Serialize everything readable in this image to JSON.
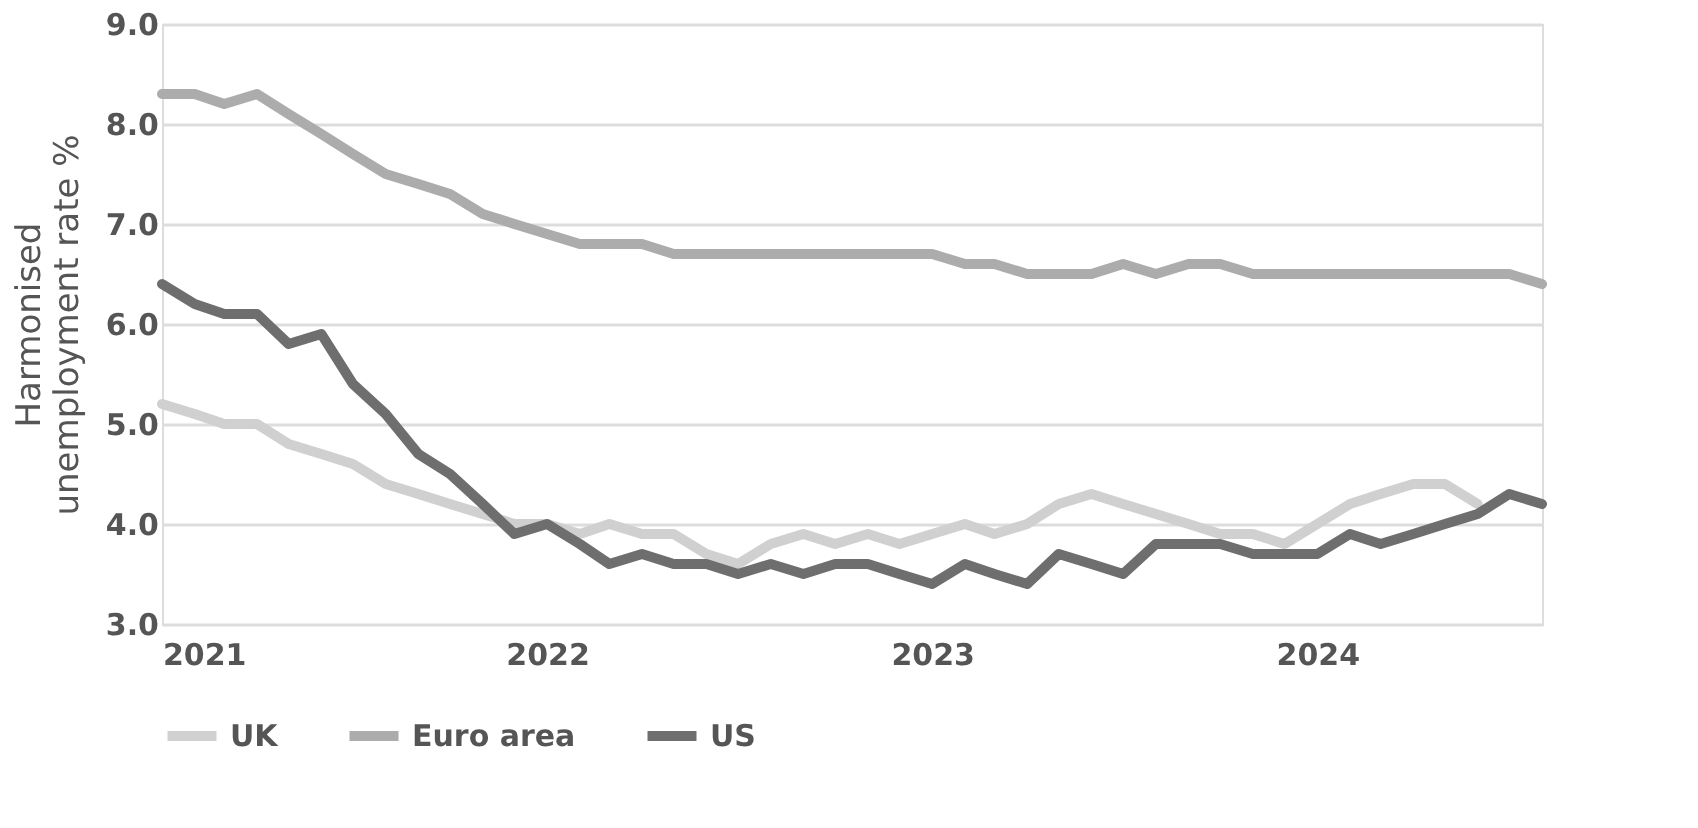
{
  "chart_data": {
    "type": "line",
    "ylabel": "Harmonised unemployment rate %",
    "x": [
      "2021-01",
      "2021-02",
      "2021-03",
      "2021-04",
      "2021-05",
      "2021-06",
      "2021-07",
      "2021-08",
      "2021-09",
      "2021-10",
      "2021-11",
      "2021-12",
      "2022-01",
      "2022-02",
      "2022-03",
      "2022-04",
      "2022-05",
      "2022-06",
      "2022-07",
      "2022-08",
      "2022-09",
      "2022-10",
      "2022-11",
      "2022-12",
      "2023-01",
      "2023-02",
      "2023-03",
      "2023-04",
      "2023-05",
      "2023-06",
      "2023-07",
      "2023-08",
      "2023-09",
      "2023-10",
      "2023-11",
      "2023-12",
      "2024-01",
      "2024-02",
      "2024-03",
      "2024-04",
      "2024-05",
      "2024-06",
      "2024-07",
      "2024-08"
    ],
    "series": [
      {
        "name": "UK",
        "color": "#d0d0d0",
        "values": [
          5.2,
          5.1,
          5.0,
          5.0,
          4.8,
          4.7,
          4.6,
          4.4,
          4.3,
          4.2,
          4.1,
          4.0,
          4.0,
          3.9,
          4.0,
          3.9,
          3.9,
          3.7,
          3.6,
          3.8,
          3.9,
          3.8,
          3.9,
          3.8,
          3.9,
          4.0,
          3.9,
          4.0,
          4.2,
          4.3,
          4.2,
          4.1,
          4.0,
          3.9,
          3.9,
          3.8,
          4.0,
          4.2,
          4.3,
          4.4,
          4.4,
          4.2,
          null,
          null
        ]
      },
      {
        "name": "Euro area",
        "color": "#acacac",
        "values": [
          8.3,
          8.3,
          8.2,
          8.3,
          8.1,
          7.9,
          7.7,
          7.5,
          7.4,
          7.3,
          7.1,
          7.0,
          6.9,
          6.8,
          6.8,
          6.8,
          6.7,
          6.7,
          6.7,
          6.7,
          6.7,
          6.7,
          6.7,
          6.7,
          6.7,
          6.6,
          6.6,
          6.5,
          6.5,
          6.5,
          6.6,
          6.5,
          6.6,
          6.6,
          6.5,
          6.5,
          6.5,
          6.5,
          6.5,
          6.5,
          6.5,
          6.5,
          6.5,
          6.4
        ]
      },
      {
        "name": "US",
        "color": "#6e6e6e",
        "values": [
          6.4,
          6.2,
          6.1,
          6.1,
          5.8,
          5.9,
          5.4,
          5.1,
          4.7,
          4.5,
          4.2,
          3.9,
          4.0,
          3.8,
          3.6,
          3.7,
          3.6,
          3.6,
          3.5,
          3.6,
          3.5,
          3.6,
          3.6,
          3.5,
          3.4,
          3.6,
          3.5,
          3.4,
          3.7,
          3.6,
          3.5,
          3.8,
          3.8,
          3.8,
          3.7,
          3.7,
          3.7,
          3.9,
          3.8,
          3.9,
          4.0,
          4.1,
          4.3,
          4.2
        ]
      }
    ],
    "xlim": [
      "2021-01",
      "2024-08"
    ],
    "xticks": [
      {
        "value": "2021-01",
        "label": "2021"
      },
      {
        "value": "2022-01",
        "label": "2022"
      },
      {
        "value": "2023-01",
        "label": "2023"
      },
      {
        "value": "2024-01",
        "label": "2024"
      }
    ],
    "ylim": [
      3.0,
      9.0
    ],
    "yticks": [
      {
        "value": 3,
        "label": "3.0"
      },
      {
        "value": 4,
        "label": "4.0"
      },
      {
        "value": 5,
        "label": "5.0"
      },
      {
        "value": 6,
        "label": "6.0"
      },
      {
        "value": 7,
        "label": "7.0"
      },
      {
        "value": 8,
        "label": "8.0"
      },
      {
        "value": 9,
        "label": "9.0"
      }
    ],
    "grid": "y",
    "legend": "bottom",
    "marker": "none",
    "line_style": "solid"
  }
}
